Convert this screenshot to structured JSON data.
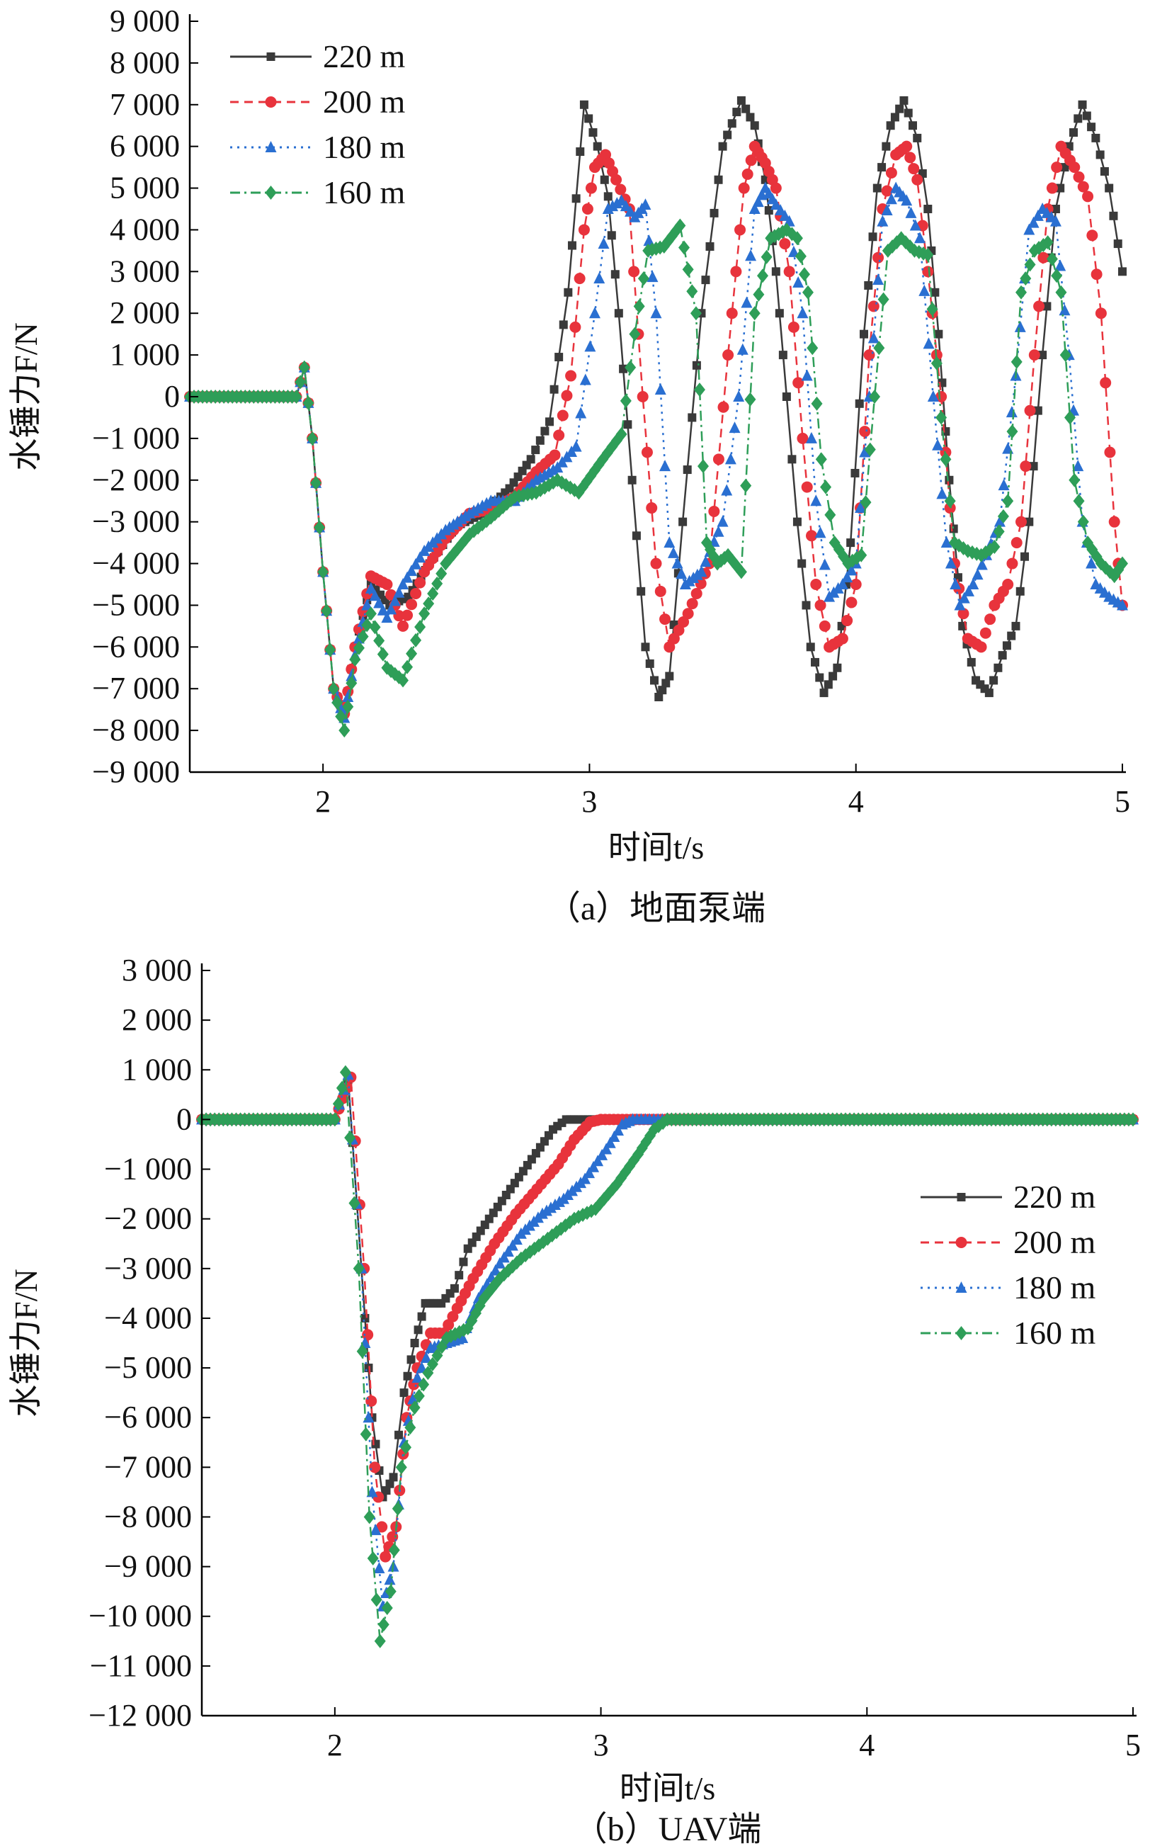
{
  "figure": {
    "panel_a_caption": "（a）地面泵端",
    "panel_b_caption": "（b）UAV端"
  },
  "colors": {
    "220 m": "#3a3a3a",
    "200 m": "#e8333c",
    "180 m": "#2a6fd1",
    "160 m": "#2e9e58"
  },
  "chart_data": [
    {
      "type": "line",
      "panel": "a",
      "xlabel": "时间t/s",
      "ylabel": "水锤力F/N",
      "xlim": [
        1.5,
        5
      ],
      "ylim": [
        -9000,
        9000
      ],
      "xticks": [
        "2",
        "3",
        "4",
        "5"
      ],
      "yticks": [
        "9 000",
        "8 000",
        "7 000",
        "6 000",
        "5 000",
        "4 000",
        "3 000",
        "2 000",
        "1 000",
        "0",
        "−1 000",
        "−2 000",
        "−3 000",
        "−4 000",
        "−5 000",
        "−6 000",
        "−7 000",
        "−8 000",
        "−9 000"
      ],
      "grid": false,
      "legend_position": "top-left",
      "series": [
        {
          "name": "220 m",
          "marker": "square",
          "dash": "solid",
          "x": [
            1.5,
            1.9,
            1.93,
            1.96,
            2.0,
            2.04,
            2.08,
            2.12,
            2.18,
            2.25,
            2.32,
            2.4,
            2.5,
            2.6,
            2.7,
            2.78,
            2.85,
            2.92,
            2.98,
            3.03,
            3.07,
            3.11,
            3.16,
            3.21,
            3.26,
            3.3,
            3.35,
            3.42,
            3.5,
            3.57,
            3.62,
            3.66,
            3.7,
            3.74,
            3.78,
            3.83,
            3.88,
            3.93,
            3.98,
            4.03,
            4.08,
            4.13,
            4.18,
            4.23,
            4.27,
            4.31,
            4.35,
            4.4,
            4.45,
            4.5,
            4.55,
            4.6,
            4.65,
            4.7,
            4.75,
            4.8,
            4.85,
            4.9,
            4.95,
            5.0
          ],
          "y": [
            0,
            0,
            700,
            -1000,
            -4200,
            -7000,
            -7600,
            -6000,
            -4500,
            -5000,
            -4800,
            -4000,
            -3100,
            -2800,
            -2200,
            -1500,
            -600,
            2500,
            7000,
            6000,
            4800,
            2000,
            -2000,
            -6000,
            -7200,
            -6700,
            -3000,
            2000,
            6000,
            7100,
            6500,
            5200,
            3000,
            0,
            -3000,
            -6000,
            -7100,
            -6500,
            -3500,
            1500,
            5000,
            6500,
            7100,
            6200,
            4500,
            1500,
            -2000,
            -5500,
            -6800,
            -7100,
            -6200,
            -5500,
            -3000,
            1000,
            4500,
            6000,
            7000,
            6200,
            5000,
            3000
          ]
        },
        {
          "name": "200 m",
          "marker": "circle",
          "dash": "12 8",
          "x": [
            1.5,
            1.9,
            1.93,
            1.96,
            2.0,
            2.04,
            2.08,
            2.12,
            2.18,
            2.24,
            2.3,
            2.38,
            2.46,
            2.55,
            2.63,
            2.72,
            2.8,
            2.87,
            2.93,
            2.98,
            3.02,
            3.06,
            3.1,
            3.15,
            3.2,
            3.25,
            3.3,
            3.37,
            3.45,
            3.52,
            3.58,
            3.62,
            3.66,
            3.7,
            3.75,
            3.8,
            3.85,
            3.9,
            3.95,
            4.0,
            4.05,
            4.1,
            4.15,
            4.19,
            4.23,
            4.27,
            4.32,
            4.37,
            4.42,
            4.47,
            4.52,
            4.57,
            4.62,
            4.67,
            4.72,
            4.77,
            4.82,
            4.87,
            4.92,
            4.97,
            5.0
          ],
          "y": [
            0,
            0,
            700,
            -1000,
            -4200,
            -7000,
            -7600,
            -6000,
            -4300,
            -4500,
            -5500,
            -4200,
            -3400,
            -2800,
            -2700,
            -2400,
            -1800,
            -1400,
            500,
            4000,
            5500,
            5800,
            5200,
            4500,
            0,
            -4000,
            -6000,
            -5200,
            -4000,
            1000,
            5000,
            6000,
            5600,
            5000,
            3000,
            -1000,
            -4500,
            -6000,
            -5800,
            -4500,
            1000,
            4500,
            5800,
            6000,
            5200,
            3000,
            0,
            -4000,
            -5800,
            -6000,
            -5000,
            -4500,
            -3000,
            1000,
            4500,
            6000,
            5500,
            4800,
            2000,
            -3000,
            -5000
          ]
        },
        {
          "name": "180 m",
          "marker": "triangle",
          "dash": "3 7",
          "x": [
            1.5,
            1.9,
            1.93,
            1.96,
            2.0,
            2.04,
            2.08,
            2.12,
            2.18,
            2.24,
            2.3,
            2.38,
            2.46,
            2.55,
            2.63,
            2.72,
            2.8,
            2.88,
            2.95,
            3.02,
            3.07,
            3.12,
            3.17,
            3.21,
            3.25,
            3.3,
            3.36,
            3.42,
            3.5,
            3.56,
            3.62,
            3.66,
            3.7,
            3.75,
            3.8,
            3.85,
            3.9,
            3.95,
            4.0,
            4.05,
            4.1,
            4.15,
            4.19,
            4.24,
            4.29,
            4.34,
            4.39,
            4.44,
            4.49,
            4.54,
            4.6,
            4.65,
            4.7,
            4.75,
            4.8,
            4.85,
            4.9,
            4.95,
            5.0
          ],
          "y": [
            0,
            0,
            700,
            -1000,
            -4200,
            -7000,
            -7700,
            -6200,
            -4600,
            -5300,
            -4500,
            -3700,
            -3200,
            -2800,
            -2500,
            -2500,
            -2000,
            -1700,
            -1200,
            2000,
            4500,
            4700,
            4300,
            4600,
            2000,
            -3500,
            -4500,
            -4200,
            -3000,
            0,
            4500,
            5000,
            4600,
            4200,
            2000,
            -2500,
            -4800,
            -4500,
            -4000,
            0,
            4200,
            5000,
            4700,
            3800,
            0,
            -3500,
            -5000,
            -4500,
            -3800,
            -3000,
            500,
            4000,
            4500,
            4200,
            1000,
            -3000,
            -4500,
            -4800,
            -5000
          ]
        },
        {
          "name": "160 m",
          "marker": "diamond",
          "dash": "14 6 3 6",
          "x": [
            1.5,
            1.9,
            1.93,
            1.96,
            2.0,
            2.04,
            2.08,
            2.12,
            2.18,
            2.24,
            2.3,
            2.38,
            2.46,
            2.55,
            2.63,
            2.72,
            2.8,
            2.88,
            2.96,
            3.05,
            3.12,
            3.17,
            3.22,
            3.28,
            3.34,
            3.4,
            3.44,
            3.48,
            3.52,
            3.57,
            3.62,
            3.68,
            3.74,
            3.78,
            3.82,
            3.87,
            3.92,
            3.97,
            4.02,
            4.07,
            4.12,
            4.17,
            4.22,
            4.27,
            4.32,
            4.37,
            4.42,
            4.47,
            4.52,
            4.57,
            4.62,
            4.67,
            4.72,
            4.77,
            4.82,
            4.87,
            4.92,
            4.97,
            5.0
          ],
          "y": [
            0,
            0,
            700,
            -1000,
            -4200,
            -7000,
            -8000,
            -6300,
            -5200,
            -6500,
            -6800,
            -5200,
            -4000,
            -3300,
            -2900,
            -2400,
            -2300,
            -2000,
            -2300,
            -1500,
            -900,
            1500,
            3500,
            3600,
            4100,
            2000,
            -3500,
            -4000,
            -3800,
            -4200,
            2000,
            3800,
            4000,
            3800,
            2500,
            -1500,
            -3500,
            -4000,
            -3800,
            0,
            3500,
            3800,
            3500,
            3400,
            -500,
            -3500,
            -3700,
            -3800,
            -3600,
            -2500,
            2500,
            3500,
            3700,
            2500,
            -2000,
            -3500,
            -4000,
            -4300,
            -4000
          ]
        }
      ]
    },
    {
      "type": "line",
      "panel": "b",
      "xlabel": "时间t/s",
      "ylabel": "水锤力F/N",
      "xlim": [
        1.5,
        5
      ],
      "ylim": [
        -12000,
        3000
      ],
      "xticks": [
        "2",
        "3",
        "4",
        "5"
      ],
      "yticks": [
        "3 000",
        "2 000",
        "1 000",
        "0",
        "−1 000",
        "−2 000",
        "−3 000",
        "−4 000",
        "−5 000",
        "−6 000",
        "−7 000",
        "−8 000",
        "−9 000",
        "−10 000",
        "−11 000",
        "−12 000"
      ],
      "grid": false,
      "legend_position": "right",
      "series": [
        {
          "name": "220 m",
          "marker": "square",
          "dash": "solid",
          "x": [
            1.5,
            2.0,
            2.05,
            2.1,
            2.14,
            2.18,
            2.22,
            2.26,
            2.3,
            2.34,
            2.4,
            2.45,
            2.5,
            2.58,
            2.66,
            2.74,
            2.82,
            2.87,
            2.9,
            3.0,
            3.5,
            4.0,
            4.5,
            5.0
          ],
          "y": [
            0,
            0,
            800,
            -3000,
            -6000,
            -7600,
            -7200,
            -5500,
            -4500,
            -3700,
            -3700,
            -3400,
            -2600,
            -2000,
            -1400,
            -800,
            -200,
            0,
            0,
            0,
            0,
            0,
            0,
            0
          ]
        },
        {
          "name": "200 m",
          "marker": "circle",
          "dash": "12 8",
          "x": [
            1.5,
            2.0,
            2.06,
            2.11,
            2.15,
            2.19,
            2.23,
            2.27,
            2.31,
            2.36,
            2.41,
            2.46,
            2.52,
            2.6,
            2.68,
            2.76,
            2.84,
            2.9,
            2.96,
            3.0,
            3.5,
            4.0,
            4.5,
            5.0
          ],
          "y": [
            0,
            0,
            850,
            -3000,
            -7000,
            -8800,
            -8200,
            -6000,
            -5000,
            -4300,
            -4300,
            -3800,
            -3200,
            -2500,
            -1900,
            -1400,
            -900,
            -400,
            -50,
            0,
            0,
            0,
            0,
            0
          ]
        },
        {
          "name": "180 m",
          "marker": "triangle",
          "dash": "3 7",
          "x": [
            1.5,
            2.0,
            2.05,
            2.1,
            2.14,
            2.18,
            2.22,
            2.26,
            2.31,
            2.36,
            2.42,
            2.48,
            2.54,
            2.62,
            2.7,
            2.78,
            2.86,
            2.94,
            3.02,
            3.08,
            3.12,
            3.5,
            4.0,
            4.5,
            5.0
          ],
          "y": [
            0,
            0,
            900,
            -3000,
            -7500,
            -9800,
            -9000,
            -6500,
            -5200,
            -4600,
            -4500,
            -4400,
            -3600,
            -2900,
            -2300,
            -1900,
            -1600,
            -1200,
            -600,
            -100,
            0,
            0,
            0,
            0,
            0
          ]
        },
        {
          "name": "160 m",
          "marker": "diamond",
          "dash": "14 6 3 6",
          "x": [
            1.5,
            2.0,
            2.04,
            2.09,
            2.13,
            2.17,
            2.21,
            2.25,
            2.3,
            2.35,
            2.42,
            2.5,
            2.56,
            2.62,
            2.7,
            2.8,
            2.9,
            2.98,
            3.06,
            3.14,
            3.2,
            3.25,
            3.5,
            4.0,
            4.5,
            5.0
          ],
          "y": [
            0,
            0,
            950,
            -3000,
            -8000,
            -10500,
            -9500,
            -7000,
            -5800,
            -5100,
            -4400,
            -4200,
            -3600,
            -3200,
            -2800,
            -2400,
            -2000,
            -1800,
            -1300,
            -700,
            -200,
            0,
            0,
            0,
            0,
            0
          ]
        }
      ]
    }
  ]
}
